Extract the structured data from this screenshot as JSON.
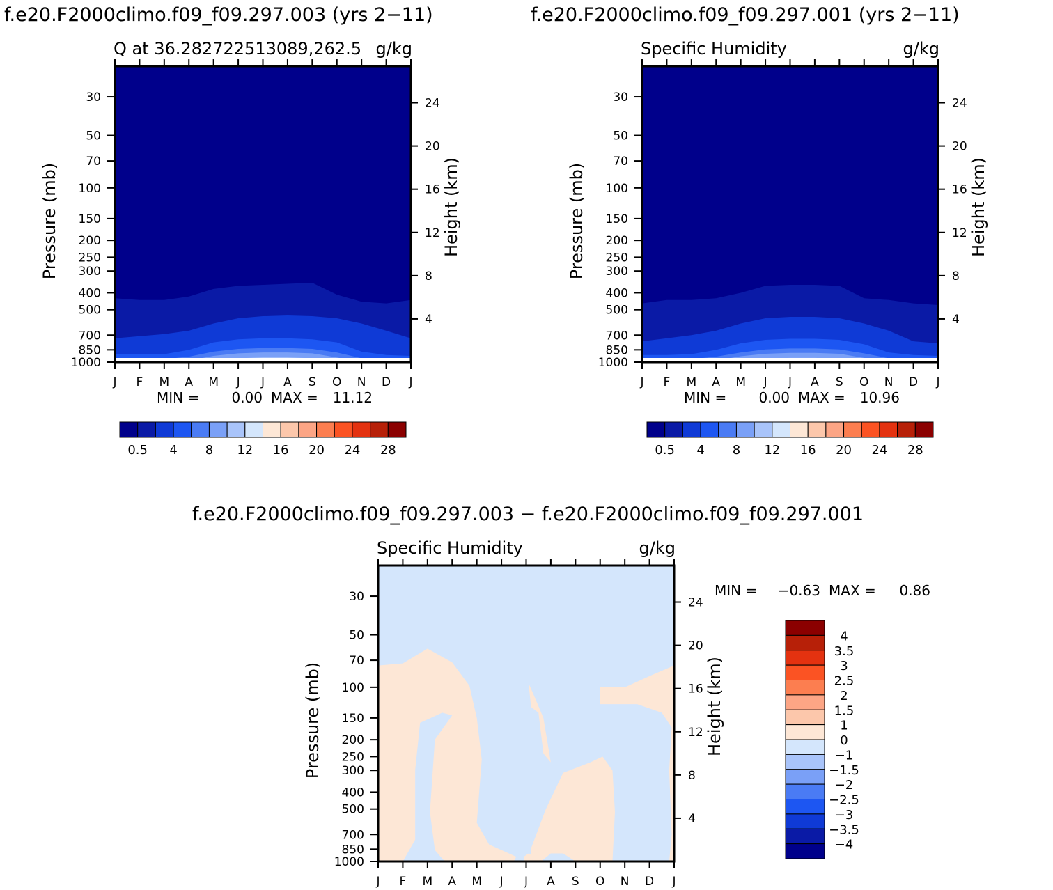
{
  "months": [
    "J",
    "F",
    "M",
    "A",
    "M",
    "J",
    "J",
    "A",
    "S",
    "O",
    "N",
    "D",
    "J"
  ],
  "pressure_ticks": [
    "30",
    "50",
    "70",
    "100",
    "150",
    "200",
    "250",
    "300",
    "400",
    "500",
    "700",
    "850",
    "1000"
  ],
  "height_ticks": [
    "24",
    "20",
    "16",
    "12",
    "8",
    "4"
  ],
  "axis": {
    "pressure_label": "Pressure (mb)",
    "height_label": "Height (km)"
  },
  "full_colors": [
    "#00008b",
    "#0a1aa6",
    "#0f3ad6",
    "#1d56f2",
    "#4a7bf4",
    "#7aa0f7",
    "#a9c4fa",
    "#d4e6fc",
    "#fde7d6",
    "#fcc7ab",
    "#fca585",
    "#fc7e50",
    "#fb5323",
    "#e43210",
    "#b72008",
    "#8b0000"
  ],
  "full_labels": [
    "0.5",
    "4",
    "8",
    "12",
    "16",
    "20",
    "24",
    "28"
  ],
  "diff_colors": [
    "#00008b",
    "#0a1aa6",
    "#0f3ad6",
    "#1d56f2",
    "#4a7bf4",
    "#7aa0f7",
    "#a9c4fa",
    "#d4e6fc",
    "#fde7d6",
    "#fcc7ab",
    "#fca585",
    "#fc7e50",
    "#fb5323",
    "#e43210",
    "#b72008",
    "#8b0000"
  ],
  "diff_labels": [
    "4",
    "3.5",
    "3",
    "2.5",
    "2",
    "1.5",
    "1",
    "0",
    "−1",
    "−1.5",
    "−2",
    "−2.5",
    "−3",
    "−3.5",
    "−4"
  ],
  "chart_data": [
    {
      "type": "heatmap",
      "title": "f.e20.F2000climo.f09_f09.297.003 (yrs 2−11)",
      "subtitle_left": "Q at 36.282722513089,262.5",
      "units": "g/kg",
      "xlabel": "",
      "ylabel": "Pressure (mb)",
      "ylabel_right": "Height (km)",
      "stats": {
        "min_label": "MIN =",
        "min": "0.00",
        "max_label": "MAX =",
        "max": "11.12"
      },
      "levels": [
        0.5,
        2,
        4,
        6,
        8,
        10,
        12
      ],
      "contour_tops_pressure": {
        "0.5": [
          430,
          440,
          440,
          420,
          380,
          365,
          360,
          355,
          350,
          410,
          450,
          460,
          440
        ],
        "2": [
          730,
          710,
          690,
          660,
          600,
          560,
          545,
          540,
          545,
          560,
          600,
          660,
          730
        ],
        "4": [
          900,
          900,
          900,
          850,
          770,
          740,
          730,
          730,
          740,
          770,
          870,
          910,
          920
        ],
        "6": [
          960,
          960,
          960,
          930,
          870,
          840,
          830,
          830,
          840,
          880,
          950,
          960,
          960
        ],
        "8": [
          1000,
          1000,
          1000,
          980,
          920,
          890,
          880,
          880,
          890,
          940,
          1000,
          1000,
          1000
        ],
        "10": [
          1000,
          1000,
          1000,
          1000,
          970,
          950,
          940,
          940,
          950,
          990,
          1000,
          1000,
          1000
        ]
      }
    },
    {
      "type": "heatmap",
      "title": "f.e20.F2000climo.f09_f09.297.001 (yrs 2−11)",
      "subtitle_left": "Specific Humidity",
      "units": "g/kg",
      "xlabel": "",
      "ylabel": "Pressure (mb)",
      "ylabel_right": "Height (km)",
      "stats": {
        "min_label": "MIN =",
        "min": "0.00",
        "max_label": "MAX =",
        "max": "10.96"
      },
      "levels": [
        0.5,
        2,
        4,
        6,
        8,
        10,
        12
      ],
      "contour_tops_pressure": {
        "0.5": [
          460,
          440,
          440,
          430,
          400,
          365,
          360,
          360,
          365,
          430,
          440,
          460,
          470
        ],
        "2": [
          760,
          730,
          700,
          660,
          600,
          560,
          550,
          550,
          560,
          600,
          660,
          760,
          780
        ],
        "4": [
          910,
          910,
          900,
          850,
          780,
          745,
          735,
          735,
          745,
          790,
          880,
          910,
          920
        ],
        "6": [
          970,
          970,
          960,
          930,
          880,
          845,
          835,
          835,
          845,
          890,
          950,
          970,
          970
        ],
        "8": [
          1000,
          1000,
          1000,
          980,
          925,
          895,
          885,
          885,
          895,
          945,
          1000,
          1000,
          1000
        ],
        "10": [
          1000,
          1000,
          1000,
          1000,
          975,
          955,
          945,
          945,
          955,
          995,
          1000,
          1000,
          1000
        ]
      }
    },
    {
      "type": "heatmap",
      "title": "f.e20.F2000climo.f09_f09.297.003 − f.e20.F2000climo.f09_f09.297.001",
      "subtitle_left": "Specific Humidity",
      "units": "g/kg",
      "xlabel": "",
      "ylabel": "Pressure (mb)",
      "ylabel_right": "Height (km)",
      "stats": {
        "min_label": "MIN =",
        "min": "−0.63",
        "max_label": "MAX =",
        "max": "0.86"
      },
      "levels": [
        -4,
        -3.5,
        -3,
        -2.5,
        -2,
        -1.5,
        -1,
        0,
        1,
        1.5,
        2,
        2.5,
        3,
        3.5,
        4
      ],
      "positive_regions_month_pressure": [
        [
          [
            0,
            75
          ],
          [
            1,
            73
          ],
          [
            2,
            60
          ],
          [
            3,
            72
          ],
          [
            3.7,
            98
          ],
          [
            4,
            150
          ],
          [
            4.2,
            260
          ],
          [
            4,
            600
          ],
          [
            4.5,
            800
          ],
          [
            5,
            860
          ],
          [
            5.6,
            940
          ],
          [
            5.5,
            1000
          ],
          [
            3.3,
            1000
          ],
          [
            2.7,
            1000
          ],
          [
            2.3,
            860
          ],
          [
            2.1,
            520
          ],
          [
            2.3,
            200
          ],
          [
            3,
            145
          ],
          [
            2.6,
            140
          ],
          [
            1.7,
            160
          ],
          [
            1.5,
            300
          ],
          [
            1.5,
            750
          ],
          [
            1,
            1000
          ],
          [
            0,
            1000
          ]
        ],
        [
          [
            6.2,
            840
          ],
          [
            6.8,
            500
          ],
          [
            7.5,
            310
          ],
          [
            8.6,
            270
          ],
          [
            9.1,
            250
          ],
          [
            9.5,
            300
          ],
          [
            9.6,
            520
          ],
          [
            9.5,
            1000
          ],
          [
            8.7,
            1000
          ],
          [
            8,
            1000
          ],
          [
            7.5,
            900
          ],
          [
            7,
            900
          ],
          [
            6.6,
            1000
          ],
          [
            6.2,
            1000
          ]
        ],
        [
          [
            5.9,
            940
          ],
          [
            6.1,
            900
          ],
          [
            6.5,
            930
          ],
          [
            6.2,
            990
          ],
          [
            5.9,
            1000
          ]
        ],
        [
          [
            6.1,
            95
          ],
          [
            6.3,
            110
          ],
          [
            6.7,
            150
          ],
          [
            7.0,
            270
          ],
          [
            6.7,
            240
          ],
          [
            6.5,
            140
          ],
          [
            6.2,
            130
          ]
        ],
        [
          [
            9,
            100
          ],
          [
            10,
            100
          ],
          [
            11.1,
            85
          ],
          [
            12,
            75
          ],
          [
            12,
            1000
          ],
          [
            11.8,
            1000
          ],
          [
            11.9,
            700
          ],
          [
            11.8,
            300
          ],
          [
            11.9,
            170
          ],
          [
            11.5,
            140
          ],
          [
            10.5,
            125
          ],
          [
            9,
            125
          ]
        ]
      ]
    }
  ]
}
